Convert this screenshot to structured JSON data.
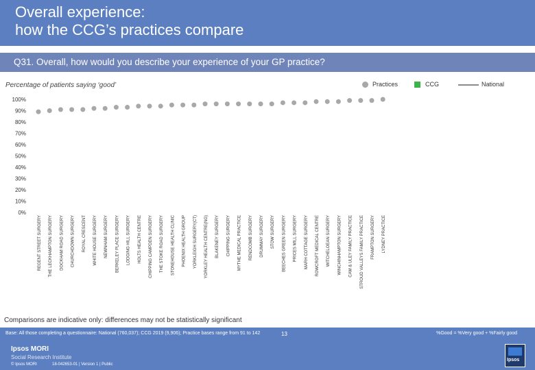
{
  "header": {
    "title_line1": "Overall experience:",
    "title_line2": "how the CCG’s practices compare",
    "question": "Q31. Overall, how would you describe your experience of your GP practice?"
  },
  "subtitle": "Percentage of patients saying ‘good’",
  "legend": {
    "practices": "Practices",
    "ccg": "CCG",
    "national": "National"
  },
  "colors": {
    "header_bg": "#5b7fc0",
    "question_bg": "#6f84b9",
    "practice_dot": "#a8a8a8",
    "ccg": "#3cb44b",
    "national_line": "#8a8a8a"
  },
  "chart_data": {
    "type": "scatter",
    "title": "Q31. Overall, how would you describe your experience of your GP practice?",
    "ylabel": "Percentage of patients saying ‘good’",
    "ylim": [
      0,
      100
    ],
    "yticks": [
      "0%",
      "10%",
      "20%",
      "30%",
      "40%",
      "50%",
      "60%",
      "70%",
      "80%",
      "90%",
      "100%"
    ],
    "categories": [
      "REGENT STREET SURGERY",
      "THE LECKHAMPTON SURGERY",
      "DOCKHAM ROAD SURGERY",
      "CHURCHDOWN SURGERY",
      "ROYAL CRESCENT",
      "WHITE HOUSE SURGERY",
      "NEWNHAM SURGERY",
      "BERKELEY PLACE SURGERY",
      "LODGING HILL SURGERY",
      "HOLTS HEALTH CENTRE",
      "CHIPPING CAMPDEN SURGERY",
      "THE STOKE ROAD SURGERY",
      "STONEHOUSE HEALTH CLINIC",
      "PHOENIX HEALTH GROUP",
      "YORKLEIGH SURGERY(CT)",
      "YORKLEY HEALTH CENTRE(NG)",
      "BLAKENEY SURGERY",
      "CHIPPING SURGERY",
      "MYTHE MEDICAL PRACTICE",
      "RENDCOMB SURGERY",
      "DRUMMAY SURGERY",
      "STOW SURGERY",
      "BEECHES GREEN SURGERY",
      "PRICES MILL SURGERY",
      "MARH COTTAGE SURGERY",
      "ROWCROFT MEDICAL CENTRE",
      "WITCHELOEAN SURGERY",
      "WINCHINHAMPTON SURGERY",
      "CAM & ULEY FAMILY PRACTICE",
      "STROUD VALLEYS FAMILY PRACTICE",
      "FRAMPTON SURGERY",
      "LYDNEY PRACTICE"
    ],
    "series": [
      {
        "name": "Practices",
        "values": [
          89,
          90,
          91,
          91,
          91,
          92,
          92,
          93,
          93,
          94,
          94,
          94,
          95,
          95,
          95,
          96,
          96,
          96,
          96,
          96,
          96,
          96,
          97,
          97,
          97,
          98,
          98,
          98,
          99,
          99,
          99,
          100
        ]
      },
      {
        "name": "CCG",
        "values": []
      },
      {
        "name": "National",
        "values": []
      }
    ],
    "legend_position": "top-right",
    "grid": false
  },
  "notes": {
    "comparison": "Comparisons are indicative only: differences may not be statistically significant",
    "base": "Base: All those completing a questionnaire: National (760,037); CCG 2019 (9,906); Practice bases range from 91 to 142",
    "calc": "%Good = %Very good + %Fairly good"
  },
  "footer": {
    "logo_line1": "Ipsos MORI",
    "logo_line2": "Social Research Institute",
    "copyright": "© Ipsos MORI",
    "job_ref": "18-042653-01 | Version 1 | Public",
    "page_number": "13",
    "logo_text": "Ipsos"
  }
}
